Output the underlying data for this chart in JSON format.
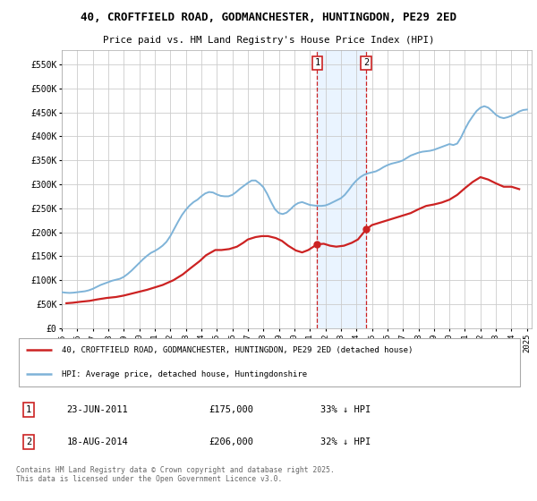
{
  "title": "40, CROFTFIELD ROAD, GODMANCHESTER, HUNTINGDON, PE29 2ED",
  "subtitle": "Price paid vs. HM Land Registry's House Price Index (HPI)",
  "background_color": "#ffffff",
  "plot_bg_color": "#ffffff",
  "grid_color": "#cccccc",
  "hpi_color": "#7eb3d8",
  "price_color": "#cc2222",
  "sale1_date": "23-JUN-2011",
  "sale1_price": 175000,
  "sale1_pct": "33% ↓ HPI",
  "sale2_date": "18-AUG-2014",
  "sale2_price": 206000,
  "sale2_pct": "32% ↓ HPI",
  "legend_label1": "40, CROFTFIELD ROAD, GODMANCHESTER, HUNTINGDON, PE29 2ED (detached house)",
  "legend_label2": "HPI: Average price, detached house, Huntingdonshire",
  "footer": "Contains HM Land Registry data © Crown copyright and database right 2025.\nThis data is licensed under the Open Government Licence v3.0.",
  "ylim": [
    0,
    580000
  ],
  "yticks": [
    0,
    50000,
    100000,
    150000,
    200000,
    250000,
    300000,
    350000,
    400000,
    450000,
    500000,
    550000
  ],
  "ytick_labels": [
    "£0",
    "£50K",
    "£100K",
    "£150K",
    "£200K",
    "£250K",
    "£300K",
    "£350K",
    "£400K",
    "£450K",
    "£500K",
    "£550K"
  ],
  "hpi_data": {
    "years": [
      1995.0,
      1995.25,
      1995.5,
      1995.75,
      1996.0,
      1996.25,
      1996.5,
      1996.75,
      1997.0,
      1997.25,
      1997.5,
      1997.75,
      1998.0,
      1998.25,
      1998.5,
      1998.75,
      1999.0,
      1999.25,
      1999.5,
      1999.75,
      2000.0,
      2000.25,
      2000.5,
      2000.75,
      2001.0,
      2001.25,
      2001.5,
      2001.75,
      2002.0,
      2002.25,
      2002.5,
      2002.75,
      2003.0,
      2003.25,
      2003.5,
      2003.75,
      2004.0,
      2004.25,
      2004.5,
      2004.75,
      2005.0,
      2005.25,
      2005.5,
      2005.75,
      2006.0,
      2006.25,
      2006.5,
      2006.75,
      2007.0,
      2007.25,
      2007.5,
      2007.75,
      2008.0,
      2008.25,
      2008.5,
      2008.75,
      2009.0,
      2009.25,
      2009.5,
      2009.75,
      2010.0,
      2010.25,
      2010.5,
      2010.75,
      2011.0,
      2011.25,
      2011.5,
      2011.75,
      2012.0,
      2012.25,
      2012.5,
      2012.75,
      2013.0,
      2013.25,
      2013.5,
      2013.75,
      2014.0,
      2014.25,
      2014.5,
      2014.75,
      2015.0,
      2015.25,
      2015.5,
      2015.75,
      2016.0,
      2016.25,
      2016.5,
      2016.75,
      2017.0,
      2017.25,
      2017.5,
      2017.75,
      2018.0,
      2018.25,
      2018.5,
      2018.75,
      2019.0,
      2019.25,
      2019.5,
      2019.75,
      2020.0,
      2020.25,
      2020.5,
      2020.75,
      2021.0,
      2021.25,
      2021.5,
      2021.75,
      2022.0,
      2022.25,
      2022.5,
      2022.75,
      2023.0,
      2023.25,
      2023.5,
      2023.75,
      2024.0,
      2024.25,
      2024.5,
      2024.75,
      2025.0
    ],
    "values": [
      75000,
      74000,
      73500,
      74000,
      75000,
      76000,
      77000,
      79000,
      82000,
      86000,
      90000,
      93000,
      96000,
      99000,
      101000,
      103000,
      107000,
      113000,
      120000,
      128000,
      136000,
      144000,
      151000,
      157000,
      161000,
      166000,
      172000,
      180000,
      192000,
      207000,
      222000,
      236000,
      247000,
      256000,
      263000,
      268000,
      275000,
      281000,
      284000,
      283000,
      279000,
      276000,
      275000,
      275000,
      278000,
      284000,
      291000,
      297000,
      303000,
      308000,
      308000,
      302000,
      294000,
      280000,
      263000,
      248000,
      240000,
      238000,
      241000,
      248000,
      256000,
      261000,
      263000,
      260000,
      257000,
      256000,
      255000,
      255000,
      256000,
      259000,
      263000,
      267000,
      271000,
      278000,
      288000,
      299000,
      308000,
      315000,
      320000,
      323000,
      325000,
      327000,
      331000,
      336000,
      340000,
      343000,
      345000,
      347000,
      350000,
      355000,
      360000,
      363000,
      366000,
      368000,
      369000,
      370000,
      372000,
      375000,
      378000,
      381000,
      384000,
      382000,
      385000,
      398000,
      415000,
      430000,
      442000,
      453000,
      460000,
      463000,
      460000,
      453000,
      445000,
      440000,
      438000,
      440000,
      443000,
      447000,
      452000,
      455000,
      456000
    ]
  },
  "price_data": {
    "years": [
      1995.3,
      1995.7,
      1996.2,
      1996.8,
      1997.3,
      1997.9,
      1998.5,
      1999.0,
      1999.5,
      2000.0,
      2000.5,
      2001.0,
      2001.5,
      2002.2,
      2002.8,
      2003.3,
      2003.9,
      2004.3,
      2004.9,
      2005.3,
      2005.8,
      2006.3,
      2006.7,
      2007.0,
      2007.5,
      2007.9,
      2008.3,
      2008.8,
      2009.2,
      2009.6,
      2010.1,
      2010.5,
      2010.9,
      2011.47,
      2011.9,
      2012.3,
      2012.7,
      2013.2,
      2013.7,
      2014.1,
      2014.63,
      2015.0,
      2015.5,
      2016.0,
      2016.5,
      2017.0,
      2017.5,
      2018.0,
      2018.5,
      2019.0,
      2019.5,
      2020.0,
      2020.5,
      2021.0,
      2021.5,
      2022.0,
      2022.5,
      2023.0,
      2023.5,
      2024.0,
      2024.5
    ],
    "values": [
      52000,
      53000,
      55000,
      57000,
      60000,
      63000,
      65000,
      68000,
      72000,
      76000,
      80000,
      85000,
      90000,
      100000,
      112000,
      125000,
      140000,
      152000,
      163000,
      163000,
      165000,
      170000,
      178000,
      185000,
      190000,
      192000,
      192000,
      188000,
      182000,
      172000,
      162000,
      158000,
      163000,
      175000,
      176000,
      172000,
      170000,
      172000,
      178000,
      185000,
      206000,
      215000,
      220000,
      225000,
      230000,
      235000,
      240000,
      248000,
      255000,
      258000,
      262000,
      268000,
      278000,
      292000,
      305000,
      315000,
      310000,
      302000,
      295000,
      295000,
      290000
    ]
  },
  "sale1_year": 2011.47,
  "sale2_year": 2014.63,
  "vline_color": "#cc2222",
  "shaded_color": "#ddeeff",
  "xtick_years": [
    1995,
    1996,
    1997,
    1998,
    1999,
    2000,
    2001,
    2002,
    2003,
    2004,
    2005,
    2006,
    2007,
    2008,
    2009,
    2010,
    2011,
    2012,
    2013,
    2014,
    2015,
    2016,
    2017,
    2018,
    2019,
    2020,
    2021,
    2022,
    2023,
    2024,
    2025
  ]
}
